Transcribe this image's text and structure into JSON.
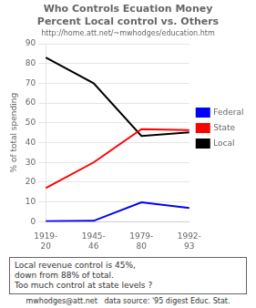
{
  "chart_data": {
    "type": "line",
    "title": [
      "Who Controls Ecuation Money",
      "Percent Local control vs. Others"
    ],
    "subtitle": "http://home.att.net/~mwhodges/education.htm",
    "ylabel": "% of total spending",
    "categories": [
      "1919-\n20",
      "1945-\n46",
      "1979-\n80",
      "1992-\n93"
    ],
    "series": [
      {
        "name": "Federal",
        "color": "#0000ff",
        "values": [
          0.3,
          0.5,
          9.8,
          7.0
        ]
      },
      {
        "name": "State",
        "color": "#ff0000",
        "values": [
          17.0,
          30.0,
          46.8,
          46.4
        ]
      },
      {
        "name": "Local",
        "color": "#000000",
        "values": [
          83.0,
          70.0,
          43.4,
          45.2
        ]
      }
    ],
    "ylim": [
      0,
      90
    ],
    "yticks": [
      0,
      10,
      20,
      30,
      40,
      50,
      60,
      70,
      80,
      90
    ],
    "grid": "y",
    "legend": "right",
    "marker": "none",
    "annotations": [
      "Local revenue control is 45%,",
      "down from 88% of total.",
      "Too much control at state levels ?"
    ],
    "footer": "mwhodges@att.net   data source: '95 digest Educ. Stat."
  }
}
